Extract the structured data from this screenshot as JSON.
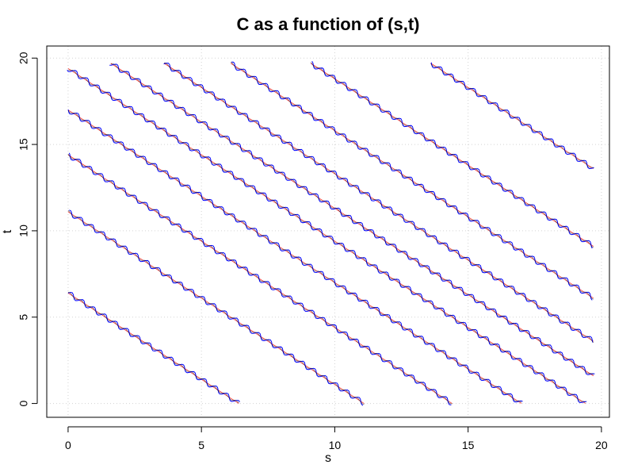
{
  "chart_data": {
    "type": "line",
    "title": "C as a function of (s,t)",
    "xlabel": "s",
    "ylabel": "t",
    "xlim": [
      -0.8,
      20.3
    ],
    "ylim": [
      -0.8,
      20.7
    ],
    "x_ticks": [
      "0",
      "5",
      "10",
      "15",
      "20"
    ],
    "y_ticks": [
      "0",
      "5",
      "10",
      "15",
      "20"
    ],
    "grid": "dotted",
    "contour_lines": [
      {
        "x": [
          0.0,
          6.4
        ],
        "y": [
          6.4,
          0.0
        ]
      },
      {
        "x": [
          0.0,
          11.1
        ],
        "y": [
          11.1,
          0.0
        ]
      },
      {
        "x": [
          0.0,
          14.4
        ],
        "y": [
          14.4,
          0.0
        ]
      },
      {
        "x": [
          0.0,
          17.0
        ],
        "y": [
          17.0,
          0.0
        ]
      },
      {
        "x": [
          0.0,
          19.4
        ],
        "y": [
          19.4,
          0.0
        ]
      },
      {
        "x": [
          1.6,
          19.7
        ],
        "y": [
          19.7,
          1.6
        ]
      },
      {
        "x": [
          3.6,
          19.7
        ],
        "y": [
          19.7,
          3.6
        ]
      },
      {
        "x": [
          6.1,
          19.7
        ],
        "y": [
          19.7,
          6.1
        ]
      },
      {
        "x": [
          9.1,
          19.7
        ],
        "y": [
          19.7,
          9.1
        ]
      },
      {
        "x": [
          13.6,
          19.7
        ],
        "y": [
          19.7,
          13.6
        ]
      }
    ],
    "series_colors": {
      "observed": "#0000ff",
      "fitted": "#ff0000"
    }
  }
}
